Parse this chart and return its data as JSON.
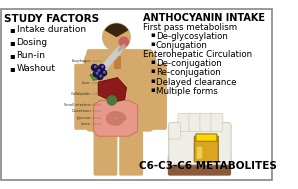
{
  "background_color": "#ffffff",
  "border_color": "#888888",
  "left_title": "STUDY FACTORS",
  "left_bullets": [
    "Intake duration",
    "Dosing",
    "Run-in",
    "Washout"
  ],
  "right_title": "ANTHOCYANIN INTAKE",
  "right_section1": "First pass metabolism",
  "right_bullets1": [
    "De-glycosylation",
    "Conjugation"
  ],
  "right_section2": "Enterohepatic Circulation",
  "right_bullets2": [
    "De-conjugation",
    "Re-conjugation",
    "Delayed clearance",
    "Multiple forms"
  ],
  "bottom_label": "C6-C3-C6 METABOLITES",
  "fig_width": 2.98,
  "fig_height": 1.89,
  "dpi": 100
}
